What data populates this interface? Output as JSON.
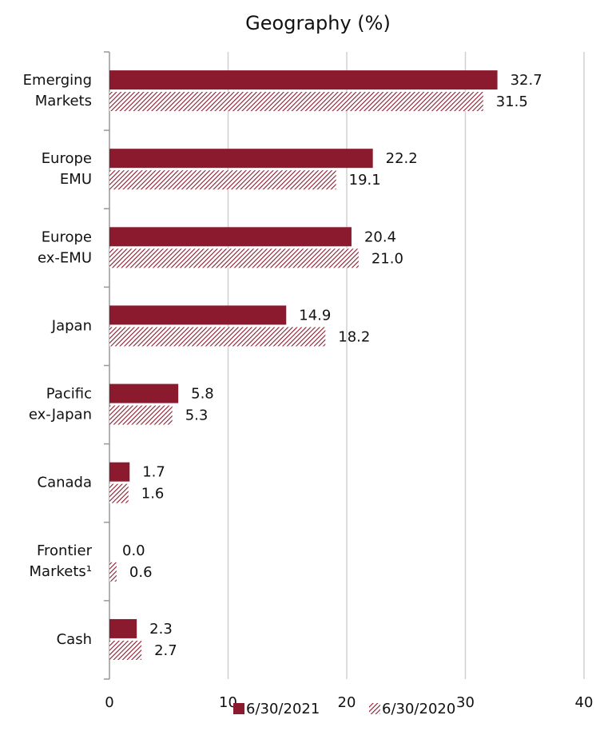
{
  "chart_data": {
    "type": "hbar",
    "title": "Geography (%)",
    "categories": [
      "Emerging Markets",
      "Europe EMU",
      "Europe ex-EMU",
      "Japan",
      "Pacific ex-Japan",
      "Canada",
      "Frontier Markets¹",
      "Cash"
    ],
    "series": [
      {
        "name": "6/30/2021",
        "color": "#8b1a2e",
        "pattern": "solid",
        "values": [
          32.7,
          22.2,
          20.4,
          14.9,
          5.8,
          1.7,
          0.0,
          2.3
        ],
        "value_labels": [
          "32.7",
          "22.2",
          "20.4",
          "14.9",
          "5.8",
          "1.7",
          "0.0",
          "2.3"
        ]
      },
      {
        "name": "6/30/2020",
        "color": "#8b1a2e",
        "pattern": "hatch",
        "values": [
          31.5,
          19.1,
          21.0,
          18.2,
          5.3,
          1.6,
          0.6,
          2.7
        ],
        "value_labels": [
          "31.5",
          "19.1",
          "21.0",
          "18.2",
          "5.3",
          "1.6",
          "0.6",
          "2.7"
        ]
      }
    ],
    "xlim": [
      0,
      40
    ],
    "xticks": [
      0,
      10,
      20,
      30,
      40
    ],
    "grid": true,
    "legend": "bottom"
  }
}
